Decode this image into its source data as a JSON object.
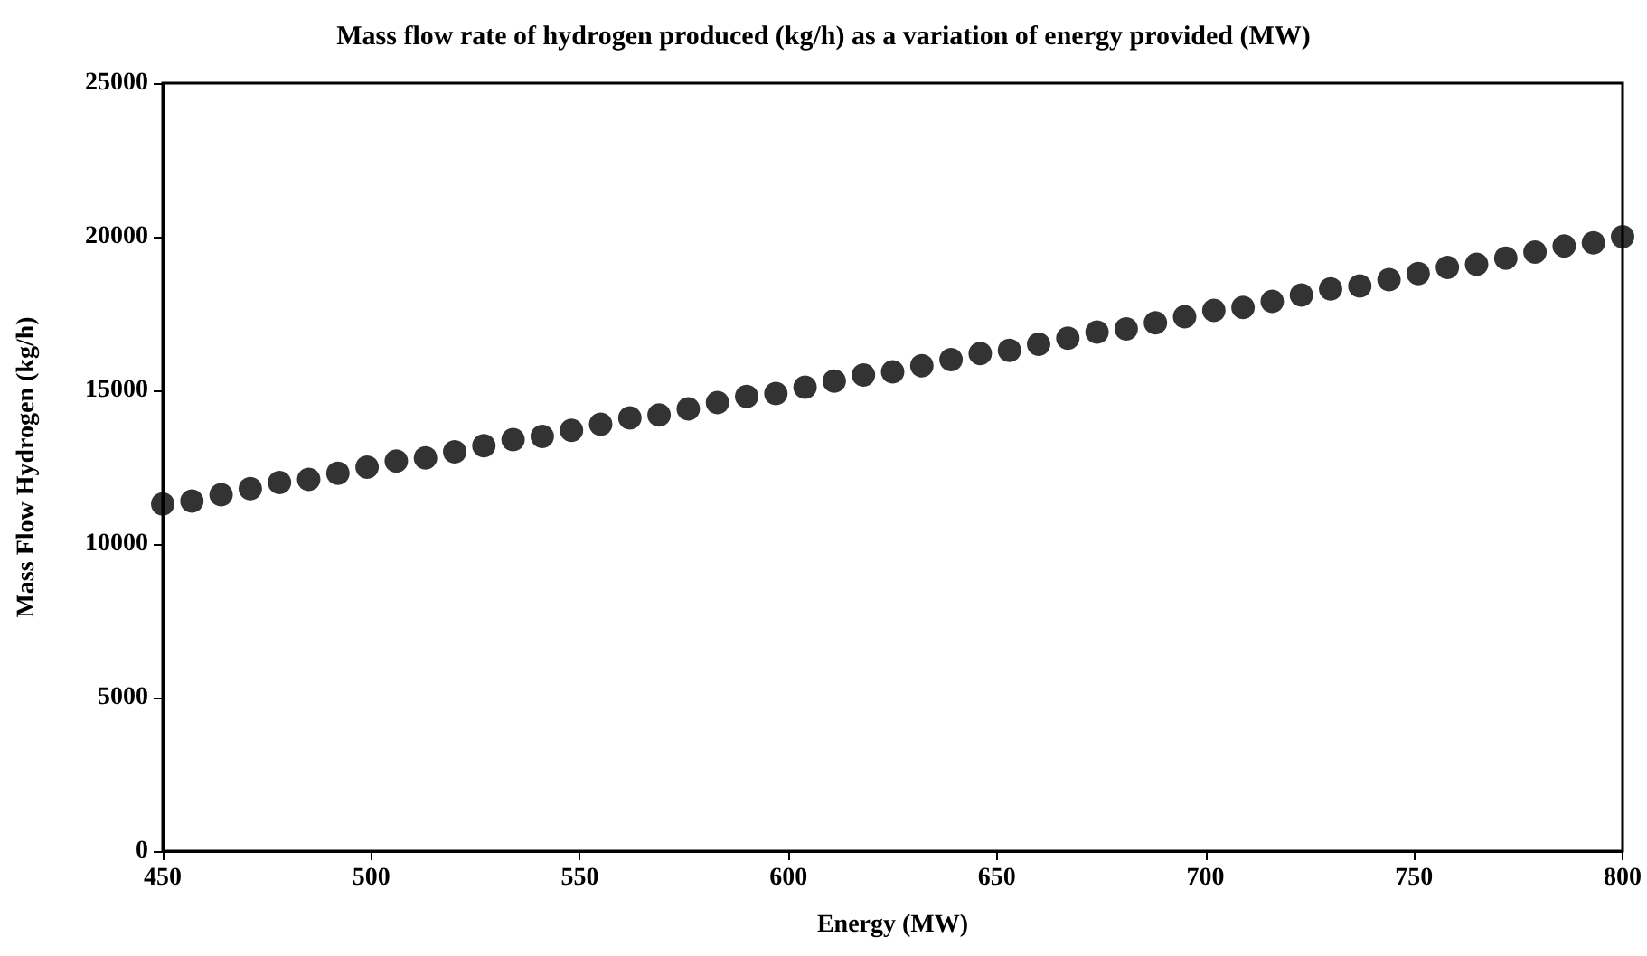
{
  "chart_data": {
    "type": "scatter",
    "title": "Mass flow rate of hydrogen produced (kg/h) as a variation of energy provided (MW)",
    "xlabel": "Energy (MW)",
    "ylabel": "Mass Flow Hydrogen (kg/h)",
    "x": [
      450,
      457,
      464,
      471,
      478,
      485,
      492,
      499,
      506,
      513,
      520,
      527,
      534,
      541,
      548,
      555,
      562,
      569,
      576,
      583,
      590,
      597,
      604,
      611,
      618,
      625,
      632,
      639,
      646,
      653,
      660,
      667,
      674,
      681,
      688,
      695,
      702,
      709,
      716,
      723,
      730,
      737,
      744,
      751,
      758,
      765,
      772,
      779,
      786,
      793,
      800
    ],
    "series": [
      {
        "color": "#000000",
        "values": [
          11300,
          11400,
          11600,
          11800,
          12000,
          12100,
          12300,
          12500,
          12700,
          12800,
          13000,
          13200,
          13400,
          13500,
          13700,
          13900,
          14100,
          14200,
          14400,
          14600,
          14800,
          14900,
          15100,
          15300,
          15500,
          15600,
          15800,
          16000,
          16200,
          16300,
          16500,
          16700,
          16900,
          17000,
          17200,
          17400,
          17600,
          17700,
          17900,
          18100,
          18300,
          18400,
          18600,
          18800,
          19000,
          19100,
          19300,
          19500,
          19700,
          19800,
          20000
        ]
      }
    ],
    "xlim": [
      450,
      800
    ],
    "xticks": [
      450,
      500,
      550,
      600,
      650,
      700,
      750,
      800
    ],
    "ylim": [
      0,
      25000
    ],
    "yticks": [
      0,
      5000,
      10000,
      15000,
      20000,
      25000
    ],
    "grid": false,
    "marker": "circle"
  }
}
